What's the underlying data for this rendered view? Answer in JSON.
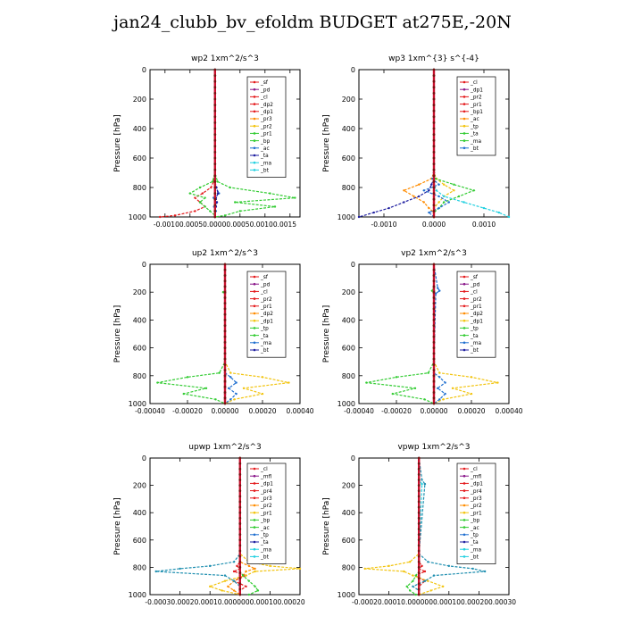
{
  "page": {
    "title": "jan24_clubb_bv_efoldm  BUDGET at275E,-20N"
  },
  "chart_data": [
    {
      "type": "line",
      "title": "wp2  1xm^2/s^3",
      "ylabel": "Pressure [hPa]",
      "ylim": [
        1000,
        0
      ],
      "yticks": [
        0,
        200,
        400,
        600,
        800,
        1000
      ],
      "xlim": [
        -0.0013,
        0.0017
      ],
      "xticks": [
        -0.001,
        -0.0005,
        0.0,
        0.0005,
        0.001,
        0.0015
      ],
      "xtick_labels": [
        "-0.0010",
        "-0.0005",
        "0.0000",
        "0.0005",
        "0.0010",
        "0.0015"
      ],
      "xtick_labels_joined": "-0.00100.00050.00000.00050.00100.0015",
      "y": [
        0,
        700,
        760,
        800,
        840,
        870,
        900,
        930,
        960,
        990,
        1000
      ],
      "legend": [
        "_sf",
        "_pd",
        "_cl",
        "_dp2",
        "_dp1",
        "_pr3",
        "_pr2",
        "_pr1",
        "_bp",
        "_ac",
        "_ta",
        "_ma",
        "_bt"
      ],
      "series": [
        {
          "name": "_pd",
          "color": "#8b1a8b",
          "values": [
            0,
            0,
            0,
            0,
            0,
            0,
            0,
            0,
            0,
            0,
            0
          ]
        },
        {
          "name": "_dp1",
          "color": "#e41a1c",
          "values": [
            0,
            0,
            -3e-05,
            -8e-05,
            -0.00025,
            -0.0004,
            -0.0003,
            -0.0002,
            -0.0004,
            -0.0008,
            -0.0011
          ]
        },
        {
          "name": "_pr1",
          "color": "#33cc33",
          "values": [
            0,
            0,
            5e-05,
            0.0003,
            0.0011,
            0.0016,
            0.0004,
            0.0012,
            0.0005,
            0.0002,
            0
          ]
        },
        {
          "name": "_pr2",
          "color": "#33cc33",
          "values": [
            0,
            0,
            -5e-05,
            -0.0003,
            -0.0005,
            -0.0002,
            -0.0003,
            -0.0002,
            -0.0001,
            0,
            0
          ]
        },
        {
          "name": "_bp",
          "color": "#1f6fd0",
          "values": [
            0,
            0,
            0,
            2e-05,
            8e-05,
            -3e-05,
            3e-05,
            -2e-05,
            2e-05,
            0,
            0
          ]
        },
        {
          "name": "_ac",
          "color": "#1f1fa0",
          "values": [
            0,
            0,
            0,
            3e-05,
            6e-05,
            2e-05,
            4e-05,
            2e-05,
            0,
            0,
            0
          ]
        },
        {
          "name": "_bt",
          "color": "#22d0e0",
          "values": [
            0,
            0,
            0,
            0,
            0,
            0,
            0,
            0,
            0,
            0,
            0
          ]
        }
      ]
    },
    {
      "type": "line",
      "title": "wp3  1xm^{3} s^{-4}",
      "ylabel": "Pressure [hPa]",
      "ylim": [
        1000,
        0
      ],
      "yticks": [
        0,
        200,
        400,
        600,
        800,
        1000
      ],
      "xlim": [
        -0.0015,
        0.0015
      ],
      "xticks": [
        -0.001,
        0.0,
        0.001
      ],
      "xtick_labels": [
        "-0.0010",
        "0.0000",
        "0.0010"
      ],
      "y": [
        0,
        700,
        740,
        780,
        820,
        860,
        900,
        940,
        970,
        1000
      ],
      "legend": [
        "_cl",
        "_dp1",
        "_pr2",
        "_pr1",
        "_bp1",
        "_ac",
        "_tp",
        "_ta",
        "_ma",
        "_bt"
      ],
      "series": [
        {
          "name": "_cl",
          "color": "#e41a1c",
          "values": [
            0,
            0,
            0,
            0,
            0,
            0,
            0,
            0,
            0,
            0
          ]
        },
        {
          "name": "_pr2",
          "color": "#ff8c00",
          "values": [
            0,
            0,
            -5e-05,
            -0.0003,
            -0.0006,
            -0.0004,
            -0.0002,
            -0.0001,
            0,
            0
          ]
        },
        {
          "name": "_pr1",
          "color": "#f2c40f",
          "values": [
            0,
            0,
            5e-05,
            0.0002,
            0.0004,
            0.0002,
            0.0001,
            0,
            0,
            0
          ]
        },
        {
          "name": "_ac",
          "color": "#33cc33",
          "values": [
            0,
            0,
            3e-05,
            0.0004,
            0.0008,
            0.0005,
            0.0002,
            0.0001,
            0,
            0
          ]
        },
        {
          "name": "_tp",
          "color": "#1f6fd0",
          "values": [
            0,
            0,
            -3e-05,
            0.0001,
            -0.0002,
            0.0001,
            0.0003,
            0.0001,
            -0.0001,
            0
          ]
        },
        {
          "name": "_ta",
          "color": "#1f1fa0",
          "values": [
            0,
            0,
            0,
            -5e-05,
            -0.0001,
            -0.0003,
            -0.0006,
            -0.0009,
            -0.0012,
            -0.0015
          ]
        },
        {
          "name": "_bt",
          "color": "#22d0e0",
          "values": [
            0,
            0,
            0,
            0,
            5e-05,
            0.0002,
            0.0006,
            0.001,
            0.0013,
            0.0015
          ]
        }
      ]
    },
    {
      "type": "line",
      "title": "up2  1xm^2/s^3",
      "ylabel": "Pressure [hPa]",
      "ylim": [
        1000,
        0
      ],
      "yticks": [
        0,
        200,
        400,
        600,
        800,
        1000
      ],
      "xlim": [
        -0.0004,
        0.0004
      ],
      "xticks": [
        -0.0004,
        -0.0002,
        0.0,
        0.0002,
        0.0004
      ],
      "xtick_labels": [
        "-0.00040",
        "-0.00020",
        "0.00000",
        "0.00020",
        "0.00040"
      ],
      "y": [
        0,
        190,
        200,
        210,
        700,
        780,
        810,
        850,
        890,
        930,
        970,
        1000
      ],
      "legend": [
        "_sf",
        "_pd",
        "_cl",
        "_pr2",
        "_pr1",
        "_dp2",
        "_dp1",
        "_tp",
        "_ta",
        "_ma",
        "_bt"
      ],
      "series": [
        {
          "name": "_cl",
          "color": "#e41a1c",
          "values": [
            0,
            0,
            0,
            0,
            0,
            0,
            0,
            0,
            0,
            0,
            0,
            0
          ]
        },
        {
          "name": "_pr2",
          "color": "#f2c40f",
          "values": [
            0,
            0,
            0,
            0,
            0,
            3e-05,
            0.0002,
            0.00034,
            0.0001,
            0.0002,
            5e-05,
            0
          ]
        },
        {
          "name": "_dp1",
          "color": "#33cc33",
          "values": [
            0,
            0,
            -1e-05,
            0,
            0,
            -3e-05,
            -0.0002,
            -0.00036,
            -0.0001,
            -0.00022,
            -5e-05,
            0
          ]
        },
        {
          "name": "_tp",
          "color": "#1f6fd0",
          "values": [
            0,
            0,
            0,
            0,
            0,
            0,
            3e-05,
            6e-05,
            2e-05,
            6e-05,
            3e-05,
            0
          ]
        },
        {
          "name": "_bt",
          "color": "#22d0e0",
          "values": [
            0,
            0,
            0,
            0,
            0,
            0,
            0,
            0,
            0,
            0,
            0,
            0
          ]
        }
      ]
    },
    {
      "type": "line",
      "title": "vp2  1xm^2/s^3",
      "ylabel": "Pressure [hPa]",
      "ylim": [
        1000,
        0
      ],
      "yticks": [
        0,
        200,
        400,
        600,
        800,
        1000
      ],
      "xlim": [
        -0.0004,
        0.0004
      ],
      "xticks": [
        -0.0004,
        -0.0002,
        0.0,
        0.0002,
        0.0004
      ],
      "xtick_labels": [
        "-0.00040",
        "-0.00020",
        "0.00000",
        "0.00020",
        "0.00040"
      ],
      "y": [
        0,
        170,
        190,
        210,
        700,
        780,
        810,
        850,
        890,
        930,
        970,
        1000
      ],
      "legend": [
        "_sf",
        "_pd",
        "_cl",
        "_pr2",
        "_pr1",
        "_dp2",
        "_dp1",
        "_tp",
        "_ta",
        "_ma",
        "_bt"
      ],
      "series": [
        {
          "name": "_cl",
          "color": "#e41a1c",
          "values": [
            0,
            0,
            0,
            0,
            0,
            0,
            0,
            0,
            0,
            0,
            0,
            0
          ]
        },
        {
          "name": "_pr2",
          "color": "#f2c40f",
          "values": [
            0,
            0,
            0,
            0,
            0,
            3e-05,
            0.0002,
            0.00034,
            0.0001,
            0.0002,
            5e-05,
            0
          ]
        },
        {
          "name": "_dp1",
          "color": "#33cc33",
          "values": [
            0,
            0,
            -1e-05,
            0,
            0,
            -3e-05,
            -0.0002,
            -0.00036,
            -0.0001,
            -0.00022,
            -5e-05,
            0
          ]
        },
        {
          "name": "_tp",
          "color": "#1f6fd0",
          "values": [
            0,
            2e-05,
            3e-05,
            1e-05,
            0,
            0,
            3e-05,
            6e-05,
            2e-05,
            6e-05,
            3e-05,
            0
          ]
        },
        {
          "name": "_bt",
          "color": "#22d0e0",
          "values": [
            0,
            0,
            0,
            0,
            0,
            0,
            0,
            0,
            0,
            0,
            0,
            0
          ]
        }
      ]
    },
    {
      "type": "line",
      "title": "upwp  1xm^2/s^3",
      "ylabel": "Pressure [hPa]",
      "ylim": [
        1000,
        0
      ],
      "yticks": [
        0,
        200,
        400,
        600,
        800,
        1000
      ],
      "xlim": [
        -0.0003,
        0.0002
      ],
      "xticks": [
        -0.0003,
        -0.0002,
        -0.0001,
        0.0,
        0.0001,
        0.0002
      ],
      "xtick_labels": [
        "-0.00030",
        "-0.00020",
        "-0.00010",
        "0.00000",
        "0.00010",
        "0.00020"
      ],
      "xtick_labels_joined": "-0.00030.00020.00010.0000000.000100.00020",
      "y": [
        0,
        700,
        760,
        790,
        810,
        830,
        860,
        900,
        940,
        970,
        1000
      ],
      "legend": [
        "_cl",
        "_mfl",
        "_dp1",
        "_pr4",
        "_pr3",
        "_pr2",
        "_pr1",
        "_bp",
        "_ac",
        "_tp",
        "_ta",
        "_ma",
        "_bt"
      ],
      "series": [
        {
          "name": "_mfl",
          "color": "#8b1a8b",
          "values": [
            0,
            0,
            0,
            0,
            0,
            0,
            0,
            0,
            0,
            0,
            0
          ]
        },
        {
          "name": "_dp1",
          "color": "#e41a1c",
          "values": [
            0,
            0,
            0,
            -1e-05,
            0,
            -2e-05,
            2e-05,
            -2e-05,
            2e-05,
            0,
            0
          ]
        },
        {
          "name": "_pr2",
          "color": "#f2c40f",
          "values": [
            0,
            0,
            3e-05,
            0.0001,
            0.0002,
            5e-05,
            2e-05,
            -5e-05,
            -0.0001,
            -6e-05,
            0
          ]
        },
        {
          "name": "_pr3",
          "color": "#ff8c00",
          "values": [
            0,
            0,
            0,
            3e-05,
            5e-05,
            2e-05,
            1e-05,
            -2e-05,
            -4e-05,
            -2e-05,
            0
          ]
        },
        {
          "name": "_ac",
          "color": "#33cc33",
          "values": [
            0,
            0,
            0,
            0,
            0,
            0,
            1e-05,
            3e-05,
            5e-05,
            6e-05,
            3e-05
          ]
        },
        {
          "name": "_tp",
          "color": "#1f8fb0",
          "values": [
            0,
            0,
            -2e-05,
            -0.0001,
            -0.0002,
            -0.00028,
            -5e-05,
            -2e-05,
            0,
            0,
            0
          ]
        }
      ]
    },
    {
      "type": "line",
      "title": "vpwp  1xm^2/s^3",
      "ylabel": "Pressure [hPa]",
      "ylim": [
        1000,
        0
      ],
      "yticks": [
        0,
        200,
        400,
        600,
        800,
        1000
      ],
      "xlim": [
        -0.0002,
        0.0003
      ],
      "xticks": [
        -0.0002,
        -0.0001,
        0.0,
        0.0001,
        0.0002,
        0.0003
      ],
      "xtick_labels": [
        "-0.00020",
        "-0.00010",
        "0.00000",
        "0.00010",
        "0.00020",
        "0.00030"
      ],
      "xtick_labels_joined": "-0.00020.00010.0000000.000100.000200.00030",
      "y": [
        0,
        160,
        190,
        700,
        760,
        790,
        810,
        830,
        860,
        900,
        940,
        970,
        1000
      ],
      "legend": [
        "_cl",
        "_mfl",
        "_dp1",
        "_pr4",
        "_pr3",
        "_pr2",
        "_pr1",
        "_bp",
        "_ac",
        "_tp",
        "_ta",
        "_ma",
        "_bt"
      ],
      "series": [
        {
          "name": "_mfl",
          "color": "#8b1a8b",
          "values": [
            0,
            0,
            0,
            0,
            0,
            0,
            0,
            0,
            0,
            0,
            0,
            0,
            0
          ]
        },
        {
          "name": "_dp1",
          "color": "#e41a1c",
          "values": [
            0,
            0,
            0,
            0,
            0,
            1e-05,
            0,
            2e-05,
            -1e-05,
            2e-05,
            0,
            0,
            0
          ]
        },
        {
          "name": "_pr2",
          "color": "#f2c40f",
          "values": [
            0,
            0,
            0,
            0,
            -3e-05,
            -0.0001,
            -0.00018,
            -5e-05,
            -2e-05,
            3e-05,
            8e-05,
            4e-05,
            0
          ]
        },
        {
          "name": "_ac",
          "color": "#33cc33",
          "values": [
            0,
            0,
            0,
            0,
            0,
            0,
            0,
            0,
            -1e-05,
            -2e-05,
            -4e-05,
            -3e-05,
            -1e-05
          ]
        },
        {
          "name": "_tp",
          "color": "#1f8fb0",
          "values": [
            0,
            1e-05,
            2e-05,
            0,
            3e-05,
            0.0001,
            0.00018,
            0.00022,
            5e-05,
            2e-05,
            -2e-05,
            0,
            0
          ]
        },
        {
          "name": "_bt",
          "color": "#22d0e0",
          "values": [
            0,
            0,
            1e-05,
            0,
            0,
            0,
            0,
            0,
            0,
            0,
            0,
            0,
            0
          ]
        }
      ]
    }
  ]
}
